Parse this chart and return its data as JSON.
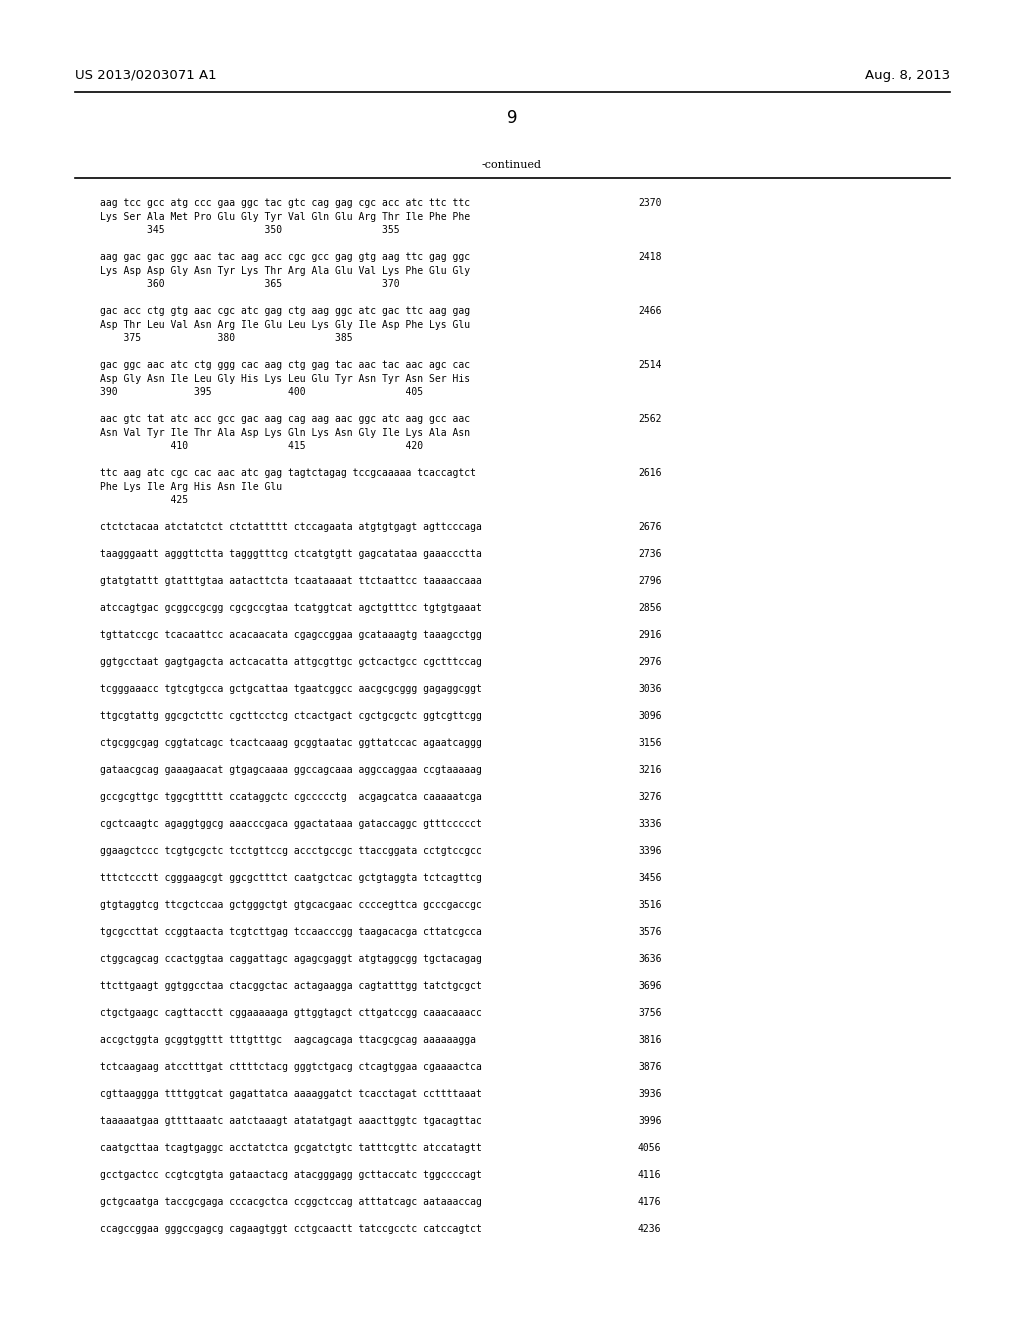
{
  "header_left": "US 2013/0203071 A1",
  "header_right": "Aug. 8, 2013",
  "page_number": "9",
  "continued_label": "-continued",
  "background_color": "#ffffff",
  "text_color": "#000000",
  "font_size": 7.0,
  "header_font_size": 9.5,
  "page_num_font_size": 12,
  "lines": [
    {
      "text": "aag tcc gcc atg ccc gaa ggc tac gtc cag gag cgc acc atc ttc ttc",
      "num": "2370"
    },
    {
      "text": "Lys Ser Ala Met Pro Glu Gly Tyr Val Gln Glu Arg Thr Ile Phe Phe",
      "num": ""
    },
    {
      "text": "        345                 350                 355",
      "num": ""
    },
    {
      "text": "",
      "num": ""
    },
    {
      "text": "aag gac gac ggc aac tac aag acc cgc gcc gag gtg aag ttc gag ggc",
      "num": "2418"
    },
    {
      "text": "Lys Asp Asp Gly Asn Tyr Lys Thr Arg Ala Glu Val Lys Phe Glu Gly",
      "num": ""
    },
    {
      "text": "        360                 365                 370",
      "num": ""
    },
    {
      "text": "",
      "num": ""
    },
    {
      "text": "gac acc ctg gtg aac cgc atc gag ctg aag ggc atc gac ttc aag gag",
      "num": "2466"
    },
    {
      "text": "Asp Thr Leu Val Asn Arg Ile Glu Leu Lys Gly Ile Asp Phe Lys Glu",
      "num": ""
    },
    {
      "text": "    375             380                 385",
      "num": ""
    },
    {
      "text": "",
      "num": ""
    },
    {
      "text": "gac ggc aac atc ctg ggg cac aag ctg gag tac aac tac aac agc cac",
      "num": "2514"
    },
    {
      "text": "Asp Gly Asn Ile Leu Gly His Lys Leu Glu Tyr Asn Tyr Asn Ser His",
      "num": ""
    },
    {
      "text": "390             395             400                 405",
      "num": ""
    },
    {
      "text": "",
      "num": ""
    },
    {
      "text": "aac gtc tat atc acc gcc gac aag cag aag aac ggc atc aag gcc aac",
      "num": "2562"
    },
    {
      "text": "Asn Val Tyr Ile Thr Ala Asp Lys Gln Lys Asn Gly Ile Lys Ala Asn",
      "num": ""
    },
    {
      "text": "            410                 415                 420",
      "num": ""
    },
    {
      "text": "",
      "num": ""
    },
    {
      "text": "ttc aag atc cgc cac aac atc gag tagtctagag tccgcaaaaa tcaccagtct",
      "num": "2616"
    },
    {
      "text": "Phe Lys Ile Arg His Asn Ile Glu",
      "num": ""
    },
    {
      "text": "            425",
      "num": ""
    },
    {
      "text": "",
      "num": ""
    },
    {
      "text": "ctctctacaa atctatctct ctctattttt ctccagaata atgtgtgagt agttcccaga",
      "num": "2676"
    },
    {
      "text": "",
      "num": ""
    },
    {
      "text": "taagggaatt agggttctta tagggtttcg ctcatgtgtt gagcatataa gaaaccctta",
      "num": "2736"
    },
    {
      "text": "",
      "num": ""
    },
    {
      "text": "gtatgtattt gtatttgtaa aatacttcta tcaataaaat ttctaattcc taaaaccaaa",
      "num": "2796"
    },
    {
      "text": "",
      "num": ""
    },
    {
      "text": "atccagtgac gcggccgcgg cgcgccgtaa tcatggtcat agctgtttcc tgtgtgaaat",
      "num": "2856"
    },
    {
      "text": "",
      "num": ""
    },
    {
      "text": "tgttatccgc tcacaattcc acacaacata cgagccggaa gcataaagtg taaagcctgg",
      "num": "2916"
    },
    {
      "text": "",
      "num": ""
    },
    {
      "text": "ggtgcctaat gagtgagcta actcacatta attgcgttgc gctcactgcc cgctttccag",
      "num": "2976"
    },
    {
      "text": "",
      "num": ""
    },
    {
      "text": "tcgggaaacc tgtcgtgcca gctgcattaa tgaatcggcc aacgcgcggg gagaggcggt",
      "num": "3036"
    },
    {
      "text": "",
      "num": ""
    },
    {
      "text": "ttgcgtattg ggcgctcttc cgcttcctcg ctcactgact cgctgcgctc ggtcgttcgg",
      "num": "3096"
    },
    {
      "text": "",
      "num": ""
    },
    {
      "text": "ctgcggcgag cggtatcagc tcactcaaag gcggtaatac ggttatccac agaatcaggg",
      "num": "3156"
    },
    {
      "text": "",
      "num": ""
    },
    {
      "text": "gataacgcag gaaagaacat gtgagcaaaa ggccagcaaa aggccaggaa ccgtaaaaag",
      "num": "3216"
    },
    {
      "text": "",
      "num": ""
    },
    {
      "text": "gccgcgttgc tggcgttttt ccataggctc cgccccctg  acgagcatca caaaaatcga",
      "num": "3276"
    },
    {
      "text": "",
      "num": ""
    },
    {
      "text": "cgctcaagtc agaggtggcg aaacccgaca ggactataaa gataccaggc gtttccccct",
      "num": "3336"
    },
    {
      "text": "",
      "num": ""
    },
    {
      "text": "ggaagctccc tcgtgcgctc tcctgttccg accctgccgc ttaccggata cctgtccgcc",
      "num": "3396"
    },
    {
      "text": "",
      "num": ""
    },
    {
      "text": "tttctccctt cgggaagcgt ggcgctttct caatgctcac gctgtaggta tctcagttcg",
      "num": "3456"
    },
    {
      "text": "",
      "num": ""
    },
    {
      "text": "gtgtaggtcg ttcgctccaa gctgggctgt gtgcacgaac ccccegttca gcccgaccgc",
      "num": "3516"
    },
    {
      "text": "",
      "num": ""
    },
    {
      "text": "tgcgccttat ccggtaacta tcgtcttgag tccaacccgg taagacacga cttatcgcca",
      "num": "3576"
    },
    {
      "text": "",
      "num": ""
    },
    {
      "text": "ctggcagcag ccactggtaa caggattagc agagcgaggt atgtaggcgg tgctacagag",
      "num": "3636"
    },
    {
      "text": "",
      "num": ""
    },
    {
      "text": "ttcttgaagt ggtggcctaa ctacggctac actagaagga cagtatttgg tatctgcgct",
      "num": "3696"
    },
    {
      "text": "",
      "num": ""
    },
    {
      "text": "ctgctgaagc cagttacctt cggaaaaaga gttggtagct cttgatccgg caaacaaacc",
      "num": "3756"
    },
    {
      "text": "",
      "num": ""
    },
    {
      "text": "accgctggta gcggtggttt tttgtttgc  aagcagcaga ttacgcgcag aaaaaagga",
      "num": "3816"
    },
    {
      "text": "",
      "num": ""
    },
    {
      "text": "tctcaagaag atcctttgat cttttctacg gggtctgacg ctcagtggaa cgaaaactca",
      "num": "3876"
    },
    {
      "text": "",
      "num": ""
    },
    {
      "text": "cgttaaggga ttttggtcat gagattatca aaaaggatct tcacctagat ccttttaaat",
      "num": "3936"
    },
    {
      "text": "",
      "num": ""
    },
    {
      "text": "taaaaatgaa gttttaaatc aatctaaagt atatatgagt aaacttggtc tgacagttac",
      "num": "3996"
    },
    {
      "text": "",
      "num": ""
    },
    {
      "text": "caatgcttaa tcagtgaggc acctatctca gcgatctgtc tatttcgttc atccatagtt",
      "num": "4056"
    },
    {
      "text": "",
      "num": ""
    },
    {
      "text": "gcctgactcc ccgtcgtgta gataactacg atacgggagg gcttaccatc tggccccagt",
      "num": "4116"
    },
    {
      "text": "",
      "num": ""
    },
    {
      "text": "gctgcaatga taccgcgaga cccacgctca ccggctccag atttatcagc aataaaccag",
      "num": "4176"
    },
    {
      "text": "",
      "num": ""
    },
    {
      "text": "ccagccggaa gggccgagcg cagaagtggt cctgcaactt tatccgcctc catccagtct",
      "num": "4236"
    }
  ]
}
